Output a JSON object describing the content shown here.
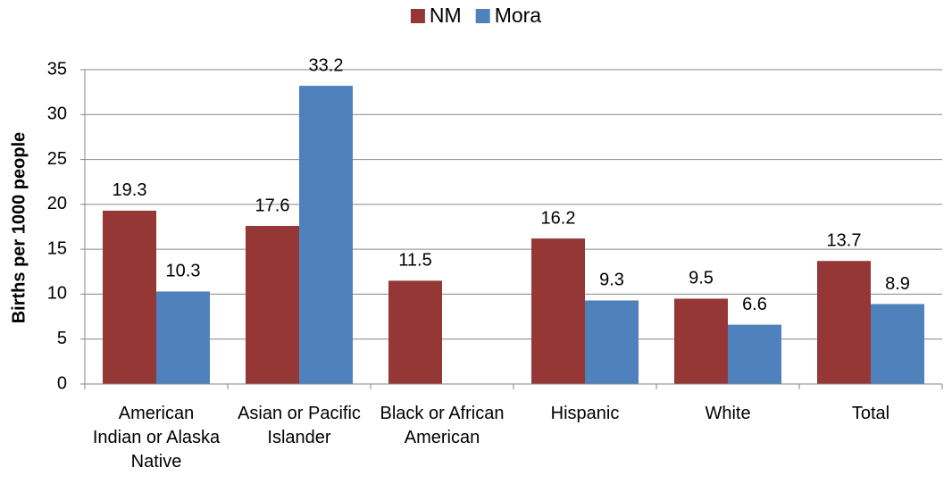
{
  "chart_data": {
    "type": "bar",
    "y_label": "Births per 1000 people",
    "categories": [
      "American Indian or Alaska Native",
      "Asian or Pacific Islander",
      "Black or African American",
      "Hispanic",
      "White",
      "Total"
    ],
    "series": [
      {
        "name": "NM",
        "color": "#953735",
        "values": [
          19.3,
          17.6,
          11.5,
          16.2,
          9.5,
          13.7
        ]
      },
      {
        "name": "Mora",
        "color": "#4f81bd",
        "values": [
          10.3,
          33.2,
          null,
          9.3,
          6.6,
          8.9
        ]
      }
    ],
    "ylim": [
      0,
      35
    ],
    "yticks": [
      0,
      5,
      10,
      15,
      20,
      25,
      30,
      35
    ],
    "grid": true,
    "legend": "top"
  }
}
